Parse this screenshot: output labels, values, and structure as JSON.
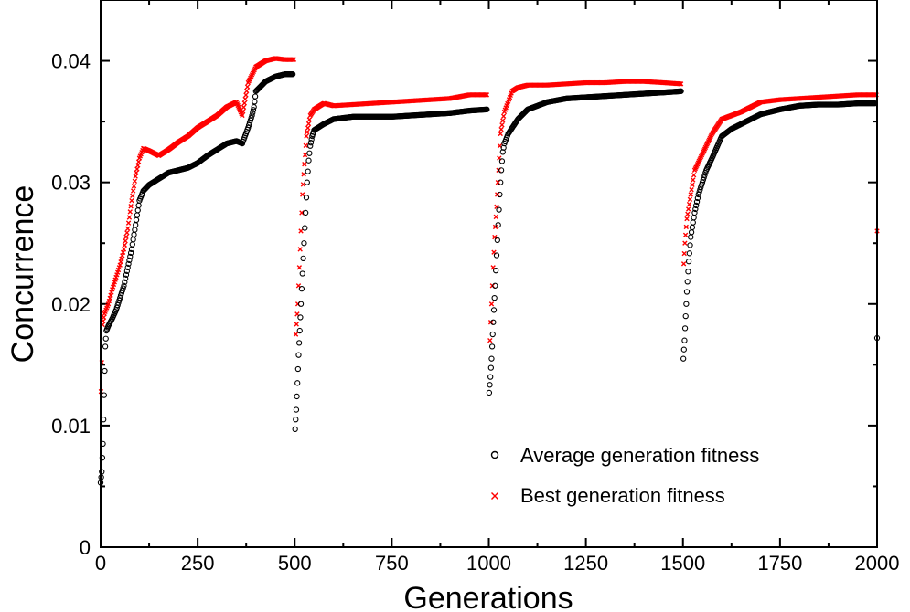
{
  "chart_data": {
    "type": "scatter",
    "xlabel": "Generations",
    "ylabel": "Concurrence",
    "xlim": [
      0,
      2000
    ],
    "ylim": [
      0,
      0.045
    ],
    "x_ticks": [
      0,
      250,
      500,
      750,
      1000,
      1250,
      1500,
      1750,
      2000
    ],
    "x_tick_labels": [
      "0",
      "250",
      "500",
      "750",
      "1000",
      "1250",
      "1500",
      "1750",
      "2000"
    ],
    "y_ticks": [
      0,
      0.01,
      0.02,
      0.03,
      0.04
    ],
    "y_tick_labels": [
      "0",
      "0.01",
      "0.02",
      "0.03",
      "0.04"
    ],
    "legend_position": "bottom-right",
    "colors": {
      "average": "#000000",
      "best": "#ff0000"
    },
    "series": [
      {
        "name": "Average generation fitness",
        "marker": "circle",
        "points": [
          [
            0,
            0.0053
          ],
          [
            3,
            0.0062
          ],
          [
            6,
            0.0085
          ],
          [
            9,
            0.0125
          ],
          [
            12,
            0.0165
          ],
          [
            15,
            0.0178
          ],
          [
            20,
            0.0182
          ],
          [
            30,
            0.0188
          ],
          [
            40,
            0.0195
          ],
          [
            50,
            0.0205
          ],
          [
            60,
            0.0215
          ],
          [
            70,
            0.023
          ],
          [
            80,
            0.0245
          ],
          [
            90,
            0.0265
          ],
          [
            100,
            0.0285
          ],
          [
            110,
            0.0293
          ],
          [
            125,
            0.0298
          ],
          [
            150,
            0.0303
          ],
          [
            175,
            0.0308
          ],
          [
            200,
            0.031
          ],
          [
            225,
            0.0312
          ],
          [
            250,
            0.0316
          ],
          [
            275,
            0.0322
          ],
          [
            300,
            0.0327
          ],
          [
            325,
            0.0332
          ],
          [
            350,
            0.0334
          ],
          [
            365,
            0.0332
          ],
          [
            380,
            0.0345
          ],
          [
            390,
            0.0355
          ],
          [
            395,
            0.0362
          ],
          [
            400,
            0.0375
          ],
          [
            425,
            0.0383
          ],
          [
            450,
            0.0387
          ],
          [
            475,
            0.0389
          ],
          [
            495,
            0.0389
          ],
          [
            501,
            0.0097
          ],
          [
            504,
            0.0113
          ],
          [
            507,
            0.0135
          ],
          [
            510,
            0.0158
          ],
          [
            513,
            0.0178
          ],
          [
            516,
            0.02
          ],
          [
            520,
            0.0225
          ],
          [
            524,
            0.025
          ],
          [
            528,
            0.0275
          ],
          [
            532,
            0.03
          ],
          [
            536,
            0.0318
          ],
          [
            540,
            0.033
          ],
          [
            545,
            0.0338
          ],
          [
            550,
            0.0343
          ],
          [
            575,
            0.0348
          ],
          [
            600,
            0.0352
          ],
          [
            650,
            0.0354
          ],
          [
            700,
            0.0354
          ],
          [
            750,
            0.0354
          ],
          [
            800,
            0.0355
          ],
          [
            850,
            0.0356
          ],
          [
            900,
            0.0357
          ],
          [
            950,
            0.0359
          ],
          [
            995,
            0.036
          ],
          [
            1001,
            0.0127
          ],
          [
            1004,
            0.014
          ],
          [
            1007,
            0.0155
          ],
          [
            1010,
            0.0175
          ],
          [
            1013,
            0.0195
          ],
          [
            1016,
            0.0215
          ],
          [
            1020,
            0.024
          ],
          [
            1024,
            0.0265
          ],
          [
            1028,
            0.029
          ],
          [
            1032,
            0.031
          ],
          [
            1036,
            0.0325
          ],
          [
            1040,
            0.0332
          ],
          [
            1050,
            0.034
          ],
          [
            1075,
            0.0352
          ],
          [
            1100,
            0.036
          ],
          [
            1150,
            0.0366
          ],
          [
            1200,
            0.0369
          ],
          [
            1250,
            0.037
          ],
          [
            1300,
            0.0371
          ],
          [
            1350,
            0.0372
          ],
          [
            1400,
            0.0373
          ],
          [
            1450,
            0.0374
          ],
          [
            1495,
            0.0375
          ],
          [
            1501,
            0.0155
          ],
          [
            1504,
            0.017
          ],
          [
            1507,
            0.019
          ],
          [
            1510,
            0.021
          ],
          [
            1515,
            0.0235
          ],
          [
            1520,
            0.0255
          ],
          [
            1530,
            0.0275
          ],
          [
            1540,
            0.029
          ],
          [
            1550,
            0.03
          ],
          [
            1560,
            0.031
          ],
          [
            1575,
            0.032
          ],
          [
            1600,
            0.0338
          ],
          [
            1625,
            0.0344
          ],
          [
            1650,
            0.0348
          ],
          [
            1675,
            0.0352
          ],
          [
            1700,
            0.0356
          ],
          [
            1750,
            0.036
          ],
          [
            1800,
            0.0363
          ],
          [
            1850,
            0.0364
          ],
          [
            1900,
            0.0364
          ],
          [
            1950,
            0.0365
          ],
          [
            1995,
            0.0365
          ],
          [
            2000,
            0.0172
          ]
        ]
      },
      {
        "name": "Best generation fitness",
        "marker": "x",
        "points": [
          [
            1,
            0.0128
          ],
          [
            3,
            0.0152
          ],
          [
            5,
            0.0183
          ],
          [
            10,
            0.0192
          ],
          [
            20,
            0.02
          ],
          [
            30,
            0.0212
          ],
          [
            40,
            0.0222
          ],
          [
            50,
            0.0232
          ],
          [
            60,
            0.0245
          ],
          [
            70,
            0.0262
          ],
          [
            80,
            0.0285
          ],
          [
            90,
            0.0305
          ],
          [
            100,
            0.032
          ],
          [
            110,
            0.0328
          ],
          [
            125,
            0.0326
          ],
          [
            150,
            0.0322
          ],
          [
            175,
            0.0327
          ],
          [
            200,
            0.0333
          ],
          [
            225,
            0.0338
          ],
          [
            250,
            0.0345
          ],
          [
            275,
            0.035
          ],
          [
            300,
            0.0355
          ],
          [
            325,
            0.0362
          ],
          [
            350,
            0.0366
          ],
          [
            365,
            0.0355
          ],
          [
            380,
            0.0382
          ],
          [
            400,
            0.0395
          ],
          [
            425,
            0.04
          ],
          [
            450,
            0.0402
          ],
          [
            475,
            0.0401
          ],
          [
            498,
            0.0401
          ],
          [
            503,
            0.0175
          ],
          [
            508,
            0.02
          ],
          [
            512,
            0.023
          ],
          [
            516,
            0.026
          ],
          [
            520,
            0.029
          ],
          [
            525,
            0.0315
          ],
          [
            530,
            0.0338
          ],
          [
            540,
            0.0355
          ],
          [
            550,
            0.036
          ],
          [
            575,
            0.0365
          ],
          [
            600,
            0.0363
          ],
          [
            650,
            0.0364
          ],
          [
            700,
            0.0365
          ],
          [
            750,
            0.0366
          ],
          [
            800,
            0.0367
          ],
          [
            850,
            0.0368
          ],
          [
            900,
            0.0369
          ],
          [
            950,
            0.0372
          ],
          [
            995,
            0.0372
          ],
          [
            1003,
            0.017
          ],
          [
            1007,
            0.02
          ],
          [
            1011,
            0.023
          ],
          [
            1015,
            0.0255
          ],
          [
            1020,
            0.028
          ],
          [
            1025,
            0.031
          ],
          [
            1030,
            0.034
          ],
          [
            1040,
            0.0358
          ],
          [
            1060,
            0.0375
          ],
          [
            1075,
            0.0378
          ],
          [
            1100,
            0.038
          ],
          [
            1150,
            0.038
          ],
          [
            1200,
            0.0381
          ],
          [
            1250,
            0.0382
          ],
          [
            1300,
            0.0382
          ],
          [
            1350,
            0.0383
          ],
          [
            1400,
            0.0383
          ],
          [
            1450,
            0.0382
          ],
          [
            1495,
            0.0381
          ],
          [
            1502,
            0.0233
          ],
          [
            1505,
            0.025
          ],
          [
            1510,
            0.027
          ],
          [
            1520,
            0.029
          ],
          [
            1530,
            0.031
          ],
          [
            1545,
            0.032
          ],
          [
            1560,
            0.033
          ],
          [
            1575,
            0.034
          ],
          [
            1600,
            0.0352
          ],
          [
            1625,
            0.0355
          ],
          [
            1650,
            0.0358
          ],
          [
            1675,
            0.0362
          ],
          [
            1700,
            0.0366
          ],
          [
            1750,
            0.0368
          ],
          [
            1800,
            0.0369
          ],
          [
            1850,
            0.037
          ],
          [
            1900,
            0.0371
          ],
          [
            1950,
            0.0372
          ],
          [
            1998,
            0.0372
          ],
          [
            2000,
            0.026
          ]
        ]
      }
    ]
  }
}
